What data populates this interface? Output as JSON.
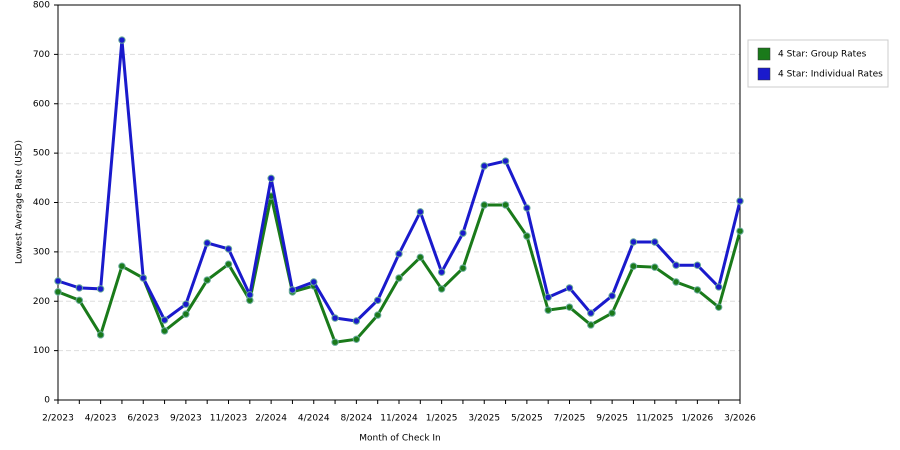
{
  "chart_data": {
    "type": "line",
    "xlabel": "Month of Check In",
    "ylabel": "Lowest Average Rate (USD)",
    "categories": [
      "2/2023",
      null,
      "4/2023",
      null,
      "6/2023",
      null,
      "9/2023",
      null,
      "11/2023",
      null,
      "2/2024",
      null,
      "4/2024",
      null,
      "8/2024",
      null,
      "11/2024",
      null,
      "1/2025",
      null,
      "3/2025",
      null,
      "5/2025",
      null,
      "7/2025",
      null,
      "9/2025",
      null,
      "11/2025",
      null,
      "1/2026",
      null,
      "3/2026"
    ],
    "series": [
      {
        "name": "4 Star: Group Rates",
        "color": "#1a7a1a",
        "values": [
          219,
          202,
          132,
          271,
          247,
          140,
          174,
          243,
          275,
          202,
          413,
          219,
          231,
          117,
          123,
          172,
          247,
          289,
          225,
          267,
          395,
          395,
          332,
          182,
          188,
          152,
          176,
          271,
          269,
          239,
          223,
          188,
          342
        ]
      },
      {
        "name": "4 Star: Individual Rates",
        "color": "#1a1acc",
        "values": [
          241,
          227,
          225,
          729,
          247,
          162,
          194,
          318,
          306,
          213,
          449,
          223,
          239,
          166,
          160,
          202,
          296,
          381,
          259,
          338,
          474,
          484,
          389,
          208,
          227,
          176,
          211,
          320,
          320,
          273,
          273,
          229,
          403
        ]
      }
    ],
    "ylim": [
      0,
      800
    ],
    "yticks": [
      0,
      100,
      200,
      300,
      400,
      500,
      600,
      700,
      800
    ],
    "grid": true,
    "legend": "right"
  }
}
